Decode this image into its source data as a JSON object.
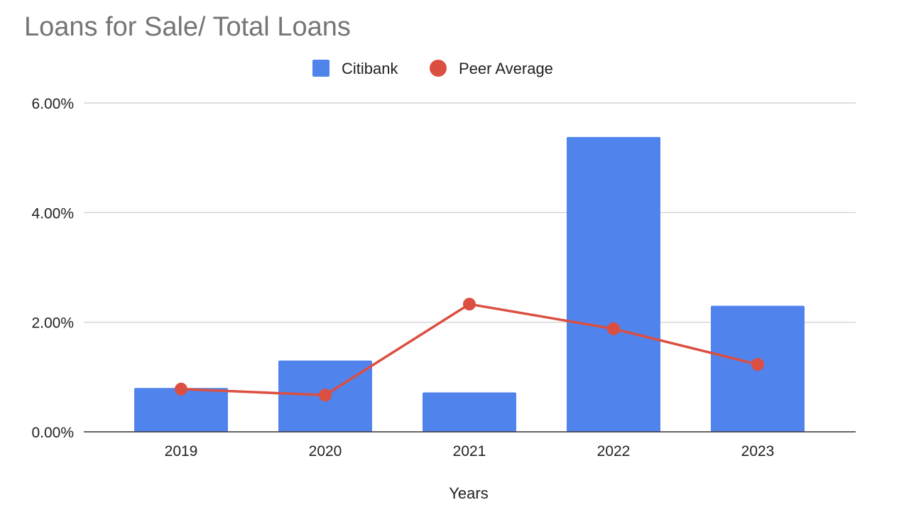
{
  "chart_data": {
    "type": "bar",
    "title": "Loans for Sale/ Total Loans",
    "xlabel": "Years",
    "ylabel": "",
    "categories": [
      "2019",
      "2020",
      "2021",
      "2022",
      "2023"
    ],
    "ylim": [
      0,
      6
    ],
    "yticks": [
      0,
      2,
      4,
      6
    ],
    "ytick_labels": [
      "0.00%",
      "2.00%",
      "4.00%",
      "6.00%"
    ],
    "grid": true,
    "legend_position": "top-center",
    "series": [
      {
        "name": "Citibank",
        "type": "bar",
        "color": "#5083EC",
        "values": [
          0.8,
          1.3,
          0.72,
          5.38,
          2.3
        ]
      },
      {
        "name": "Peer Average",
        "type": "line",
        "color": "#DB4F41",
        "values": [
          0.78,
          0.67,
          2.33,
          1.88,
          1.23
        ]
      }
    ]
  }
}
